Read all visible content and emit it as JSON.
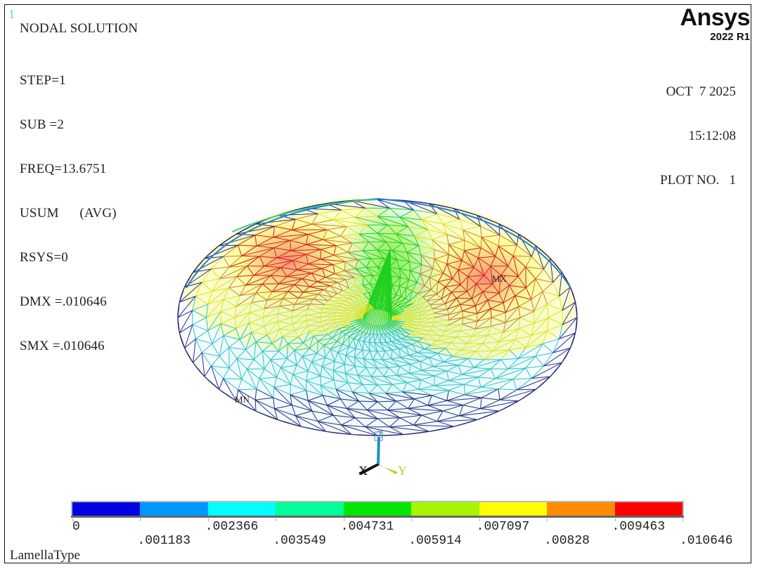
{
  "window": {
    "number": "1",
    "title": "NODAL SOLUTION",
    "info_lines": [
      "STEP=1",
      "SUB =2",
      "FREQ=13.6751",
      "USUM      (AVG)",
      "RSYS=0",
      "DMX =.010646",
      "SMX =.010646"
    ]
  },
  "branding": {
    "product": "Ansys",
    "version": "2022 R1"
  },
  "plot_meta": {
    "date": "OCT  7 2025",
    "time": "15:12:08",
    "plot_no": "PLOT NO.   1"
  },
  "model": {
    "max_label": "MX",
    "min_label": "MN",
    "triad": {
      "x": "X",
      "y": "Y",
      "z": "Z"
    }
  },
  "legend": {
    "colors": [
      "#0000e0",
      "#0096ff",
      "#00ffff",
      "#00ff9a",
      "#00e600",
      "#a8f500",
      "#ffff00",
      "#ff8c00",
      "#ff0000"
    ],
    "values": [
      "0",
      ".001183",
      ".002366",
      ".003549",
      ".004731",
      ".005914",
      ".007097",
      ".00828",
      ".009463",
      ".010646"
    ]
  },
  "footer": {
    "title": "LamellaType"
  },
  "chart_data": {
    "type": "heatmap",
    "title": "NODAL SOLUTION - USUM (AVG)",
    "quantity": "USUM",
    "frequency": 13.6751,
    "step": 1,
    "substep": 2,
    "dmx": 0.010646,
    "smx": 0.010646,
    "contour_levels": [
      0,
      0.001183,
      0.002366,
      0.003549,
      0.004731,
      0.005914,
      0.007097,
      0.00828,
      0.009463,
      0.010646
    ],
    "colors": [
      "#0000e0",
      "#0096ff",
      "#00ffff",
      "#00ff9a",
      "#00e600",
      "#a8f500",
      "#ffff00",
      "#ff8c00",
      "#ff0000"
    ]
  }
}
